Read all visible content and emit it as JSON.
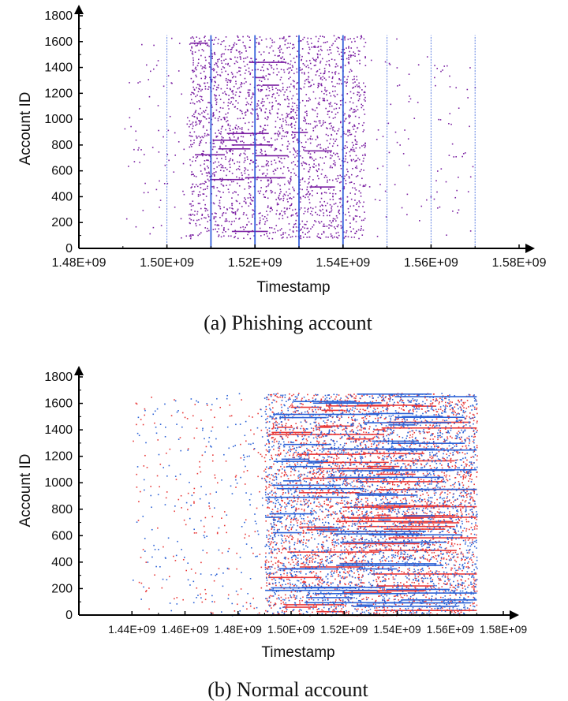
{
  "chart_data": [
    {
      "type": "scatter",
      "caption": "(a)  Phishing account",
      "xlabel": "Timestamp",
      "ylabel": "Account ID",
      "xlim": [
        1480000000.0,
        1580000000.0
      ],
      "ylim": [
        0,
        1800
      ],
      "x_ticks": [
        "1.48E+09",
        "1.50E+09",
        "1.52E+09",
        "1.54E+09",
        "1.56E+09",
        "1.58E+09"
      ],
      "y_ticks": [
        "0",
        "200",
        "400",
        "600",
        "800",
        "1000",
        "1200",
        "1400",
        "1600",
        "1800"
      ],
      "grid": false,
      "legend": "none",
      "colors": {
        "in": "#7a1fa2",
        "out": "#2050d8"
      },
      "series": [
        {
          "color_key": "in",
          "x_range": [
            1490000000.0,
            1570000000.0
          ],
          "dense_x_range": [
            1505000000.0,
            1545000000.0
          ],
          "y_range": [
            80,
            1650
          ]
        },
        {
          "color_key": "out",
          "vertical_lines_x": [
            1500000000.0,
            1510000000.0,
            1520000000.0,
            1530000000.0,
            1540000000.0,
            1550000000.0,
            1560000000.0,
            1570000000.0
          ],
          "y_range": [
            0,
            1650
          ]
        }
      ]
    },
    {
      "type": "scatter",
      "caption": "(b)  Normal account",
      "xlabel": "Timestamp",
      "ylabel": "Account ID",
      "xlim": [
        1420000000.0,
        1580000000.0
      ],
      "ylim": [
        0,
        1800
      ],
      "x_ticks": [
        "1.44E+09",
        "1.46E+09",
        "1.48E+09",
        "1.50E+09",
        "1.52E+09",
        "1.54E+09",
        "1.56E+09",
        "1.58E+09"
      ],
      "y_ticks": [
        "0",
        "200",
        "400",
        "600",
        "800",
        "1000",
        "1200",
        "1400",
        "1600",
        "1800"
      ],
      "grid": false,
      "legend": "none",
      "colors": {
        "in": "#e83838",
        "out": "#2c62d6"
      },
      "series": [
        {
          "color_key": "in",
          "x_range": [
            1440000000.0,
            1570000000.0
          ],
          "dense_x_range": [
            1490000000.0,
            1570000000.0
          ],
          "y_range": [
            0,
            1680
          ]
        },
        {
          "color_key": "out",
          "x_range": [
            1440000000.0,
            1570000000.0
          ],
          "dense_x_range": [
            1490000000.0,
            1570000000.0
          ],
          "y_range": [
            0,
            1680
          ]
        }
      ]
    }
  ]
}
